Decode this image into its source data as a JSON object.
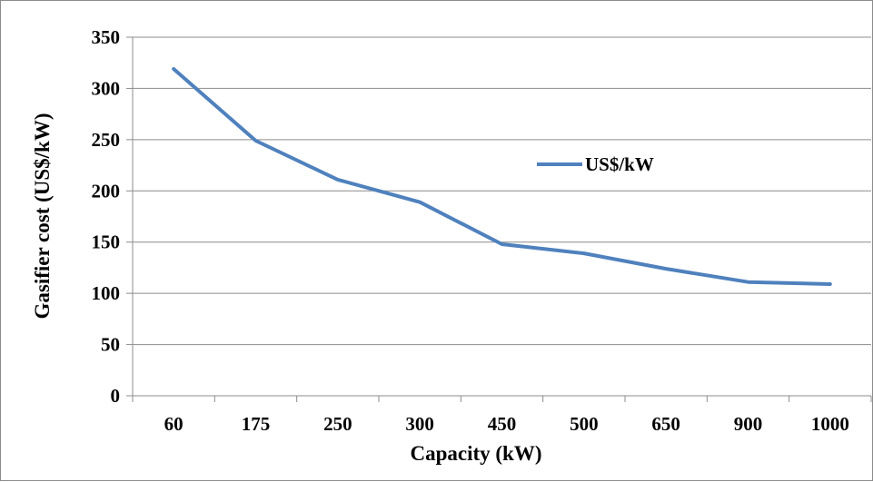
{
  "chart_data": {
    "type": "line",
    "categories": [
      "60",
      "175",
      "250",
      "300",
      "450",
      "500",
      "650",
      "900",
      "1000"
    ],
    "series": [
      {
        "name": "US$/kW",
        "values": [
          319,
          249,
          211,
          189,
          148,
          139,
          124,
          111,
          109
        ],
        "color": "#4f81bd"
      }
    ],
    "xlabel": "Capacity (kW)",
    "ylabel": "Gasifier  cost (US$/kW)",
    "ylim": [
      0,
      350
    ],
    "yticks": [
      "0",
      "50",
      "100",
      "150",
      "200",
      "250",
      "300",
      "350"
    ],
    "grid": true,
    "legend": "right"
  }
}
